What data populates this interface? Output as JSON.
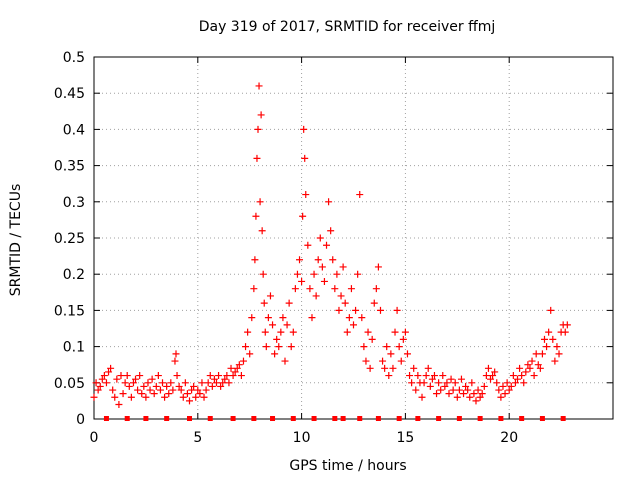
{
  "chart_data": {
    "type": "scatter",
    "title": "Day 319 of 2017, SRMTID for receiver ffmj",
    "xlabel": "GPS time / hours",
    "ylabel": "SRMTID / TECUs",
    "xlim": [
      0,
      25
    ],
    "ylim": [
      0,
      0.5
    ],
    "xticks": [
      0,
      5,
      10,
      15,
      20
    ],
    "xtick_labels": [
      "0",
      "5",
      "10",
      "15",
      "20"
    ],
    "yticks": [
      0,
      0.05,
      0.1,
      0.15,
      0.2,
      0.25,
      0.3,
      0.35,
      0.4,
      0.45,
      0.5
    ],
    "ytick_labels": [
      "0",
      "0.05",
      "0.1",
      "0.15",
      "0.2",
      "0.25",
      "0.3",
      "0.35",
      "0.4",
      "0.45",
      "0.5"
    ],
    "grid": true,
    "marker": "+",
    "color": "#ff0000",
    "zero_markers_x": [
      0.6,
      1.6,
      2.5,
      3.5,
      4.6,
      5.6,
      6.7,
      7.7,
      8.6,
      9.6,
      10.6,
      11.6,
      12.0,
      12.8,
      13.7,
      14.7,
      15.6,
      16.6,
      17.6,
      18.6,
      19.6,
      20.6,
      21.6,
      22.6
    ],
    "series": [
      {
        "name": "SRMTID",
        "points": [
          [
            0.0,
            0.03
          ],
          [
            0.1,
            0.05
          ],
          [
            0.2,
            0.04
          ],
          [
            0.3,
            0.045
          ],
          [
            0.4,
            0.055
          ],
          [
            0.5,
            0.06
          ],
          [
            0.6,
            0.05
          ],
          [
            0.7,
            0.065
          ],
          [
            0.8,
            0.07
          ],
          [
            0.9,
            0.04
          ],
          [
            1.0,
            0.03
          ],
          [
            1.1,
            0.055
          ],
          [
            1.2,
            0.02
          ],
          [
            1.3,
            0.06
          ],
          [
            1.4,
            0.035
          ],
          [
            1.5,
            0.05
          ],
          [
            1.6,
            0.06
          ],
          [
            1.7,
            0.045
          ],
          [
            1.8,
            0.03
          ],
          [
            1.9,
            0.05
          ],
          [
            2.0,
            0.055
          ],
          [
            2.1,
            0.04
          ],
          [
            2.2,
            0.06
          ],
          [
            2.3,
            0.035
          ],
          [
            2.4,
            0.045
          ],
          [
            2.5,
            0.03
          ],
          [
            2.6,
            0.05
          ],
          [
            2.7,
            0.04
          ],
          [
            2.8,
            0.055
          ],
          [
            2.9,
            0.035
          ],
          [
            3.0,
            0.045
          ],
          [
            3.1,
            0.06
          ],
          [
            3.2,
            0.04
          ],
          [
            3.3,
            0.05
          ],
          [
            3.4,
            0.03
          ],
          [
            3.5,
            0.045
          ],
          [
            3.6,
            0.035
          ],
          [
            3.7,
            0.05
          ],
          [
            3.8,
            0.04
          ],
          [
            3.9,
            0.08
          ],
          [
            3.95,
            0.09
          ],
          [
            4.0,
            0.06
          ],
          [
            4.1,
            0.045
          ],
          [
            4.2,
            0.04
          ],
          [
            4.3,
            0.03
          ],
          [
            4.4,
            0.05
          ],
          [
            4.5,
            0.035
          ],
          [
            4.6,
            0.025
          ],
          [
            4.7,
            0.04
          ],
          [
            4.8,
            0.045
          ],
          [
            4.9,
            0.03
          ],
          [
            5.0,
            0.04
          ],
          [
            5.1,
            0.035
          ],
          [
            5.2,
            0.05
          ],
          [
            5.3,
            0.03
          ],
          [
            5.4,
            0.04
          ],
          [
            5.5,
            0.05
          ],
          [
            5.6,
            0.06
          ],
          [
            5.7,
            0.045
          ],
          [
            5.8,
            0.055
          ],
          [
            5.9,
            0.05
          ],
          [
            6.0,
            0.06
          ],
          [
            6.1,
            0.045
          ],
          [
            6.2,
            0.05
          ],
          [
            6.3,
            0.055
          ],
          [
            6.4,
            0.06
          ],
          [
            6.5,
            0.05
          ],
          [
            6.6,
            0.07
          ],
          [
            6.7,
            0.06
          ],
          [
            6.8,
            0.065
          ],
          [
            6.9,
            0.07
          ],
          [
            7.0,
            0.075
          ],
          [
            7.1,
            0.06
          ],
          [
            7.2,
            0.08
          ],
          [
            7.3,
            0.1
          ],
          [
            7.4,
            0.12
          ],
          [
            7.5,
            0.09
          ],
          [
            7.6,
            0.14
          ],
          [
            7.7,
            0.18
          ],
          [
            7.75,
            0.22
          ],
          [
            7.8,
            0.28
          ],
          [
            7.85,
            0.36
          ],
          [
            7.9,
            0.4
          ],
          [
            7.95,
            0.46
          ],
          [
            8.0,
            0.3
          ],
          [
            8.05,
            0.42
          ],
          [
            8.1,
            0.26
          ],
          [
            8.15,
            0.2
          ],
          [
            8.2,
            0.16
          ],
          [
            8.25,
            0.12
          ],
          [
            8.3,
            0.1
          ],
          [
            8.4,
            0.14
          ],
          [
            8.5,
            0.17
          ],
          [
            8.6,
            0.13
          ],
          [
            8.7,
            0.09
          ],
          [
            8.8,
            0.11
          ],
          [
            8.9,
            0.1
          ],
          [
            9.0,
            0.12
          ],
          [
            9.1,
            0.14
          ],
          [
            9.2,
            0.08
          ],
          [
            9.3,
            0.13
          ],
          [
            9.4,
            0.16
          ],
          [
            9.5,
            0.1
          ],
          [
            9.6,
            0.12
          ],
          [
            9.7,
            0.18
          ],
          [
            9.8,
            0.2
          ],
          [
            9.9,
            0.22
          ],
          [
            10.0,
            0.19
          ],
          [
            10.05,
            0.28
          ],
          [
            10.1,
            0.4
          ],
          [
            10.15,
            0.36
          ],
          [
            10.2,
            0.31
          ],
          [
            10.3,
            0.24
          ],
          [
            10.4,
            0.18
          ],
          [
            10.5,
            0.14
          ],
          [
            10.6,
            0.2
          ],
          [
            10.7,
            0.17
          ],
          [
            10.8,
            0.22
          ],
          [
            10.9,
            0.25
          ],
          [
            11.0,
            0.21
          ],
          [
            11.1,
            0.19
          ],
          [
            11.2,
            0.24
          ],
          [
            11.3,
            0.3
          ],
          [
            11.4,
            0.26
          ],
          [
            11.5,
            0.22
          ],
          [
            11.6,
            0.18
          ],
          [
            11.7,
            0.2
          ],
          [
            11.8,
            0.15
          ],
          [
            11.9,
            0.17
          ],
          [
            12.0,
            0.21
          ],
          [
            12.1,
            0.16
          ],
          [
            12.2,
            0.12
          ],
          [
            12.3,
            0.14
          ],
          [
            12.4,
            0.18
          ],
          [
            12.5,
            0.13
          ],
          [
            12.6,
            0.15
          ],
          [
            12.7,
            0.2
          ],
          [
            12.8,
            0.31
          ],
          [
            12.9,
            0.14
          ],
          [
            13.0,
            0.1
          ],
          [
            13.1,
            0.08
          ],
          [
            13.2,
            0.12
          ],
          [
            13.3,
            0.07
          ],
          [
            13.4,
            0.11
          ],
          [
            13.5,
            0.16
          ],
          [
            13.6,
            0.18
          ],
          [
            13.7,
            0.21
          ],
          [
            13.8,
            0.15
          ],
          [
            13.9,
            0.08
          ],
          [
            14.0,
            0.07
          ],
          [
            14.1,
            0.1
          ],
          [
            14.2,
            0.06
          ],
          [
            14.3,
            0.09
          ],
          [
            14.4,
            0.07
          ],
          [
            14.5,
            0.12
          ],
          [
            14.6,
            0.15
          ],
          [
            14.7,
            0.1
          ],
          [
            14.8,
            0.08
          ],
          [
            14.9,
            0.11
          ],
          [
            15.0,
            0.12
          ],
          [
            15.1,
            0.09
          ],
          [
            15.2,
            0.06
          ],
          [
            15.3,
            0.05
          ],
          [
            15.4,
            0.07
          ],
          [
            15.5,
            0.04
          ],
          [
            15.6,
            0.06
          ],
          [
            15.7,
            0.05
          ],
          [
            15.8,
            0.03
          ],
          [
            15.9,
            0.05
          ],
          [
            16.0,
            0.06
          ],
          [
            16.1,
            0.07
          ],
          [
            16.2,
            0.045
          ],
          [
            16.3,
            0.055
          ],
          [
            16.4,
            0.06
          ],
          [
            16.5,
            0.035
          ],
          [
            16.6,
            0.05
          ],
          [
            16.7,
            0.04
          ],
          [
            16.8,
            0.06
          ],
          [
            16.9,
            0.045
          ],
          [
            17.0,
            0.05
          ],
          [
            17.1,
            0.035
          ],
          [
            17.2,
            0.055
          ],
          [
            17.3,
            0.04
          ],
          [
            17.4,
            0.05
          ],
          [
            17.5,
            0.03
          ],
          [
            17.6,
            0.04
          ],
          [
            17.7,
            0.055
          ],
          [
            17.8,
            0.035
          ],
          [
            17.9,
            0.045
          ],
          [
            18.0,
            0.04
          ],
          [
            18.1,
            0.03
          ],
          [
            18.2,
            0.05
          ],
          [
            18.3,
            0.035
          ],
          [
            18.4,
            0.025
          ],
          [
            18.5,
            0.04
          ],
          [
            18.6,
            0.03
          ],
          [
            18.7,
            0.035
          ],
          [
            18.8,
            0.045
          ],
          [
            18.9,
            0.06
          ],
          [
            19.0,
            0.07
          ],
          [
            19.1,
            0.055
          ],
          [
            19.2,
            0.06
          ],
          [
            19.3,
            0.065
          ],
          [
            19.4,
            0.05
          ],
          [
            19.5,
            0.04
          ],
          [
            19.6,
            0.03
          ],
          [
            19.7,
            0.045
          ],
          [
            19.8,
            0.035
          ],
          [
            19.9,
            0.05
          ],
          [
            20.0,
            0.04
          ],
          [
            20.1,
            0.045
          ],
          [
            20.2,
            0.06
          ],
          [
            20.3,
            0.05
          ],
          [
            20.4,
            0.055
          ],
          [
            20.5,
            0.07
          ],
          [
            20.6,
            0.06
          ],
          [
            20.7,
            0.05
          ],
          [
            20.8,
            0.065
          ],
          [
            20.9,
            0.075
          ],
          [
            21.0,
            0.07
          ],
          [
            21.1,
            0.08
          ],
          [
            21.2,
            0.06
          ],
          [
            21.3,
            0.09
          ],
          [
            21.4,
            0.075
          ],
          [
            21.5,
            0.07
          ],
          [
            21.6,
            0.09
          ],
          [
            21.7,
            0.11
          ],
          [
            21.8,
            0.1
          ],
          [
            21.9,
            0.12
          ],
          [
            22.0,
            0.15
          ],
          [
            22.1,
            0.11
          ],
          [
            22.2,
            0.08
          ],
          [
            22.3,
            0.1
          ],
          [
            22.4,
            0.09
          ],
          [
            22.5,
            0.12
          ],
          [
            22.6,
            0.13
          ],
          [
            22.7,
            0.12
          ],
          [
            22.8,
            0.13
          ]
        ]
      }
    ]
  }
}
